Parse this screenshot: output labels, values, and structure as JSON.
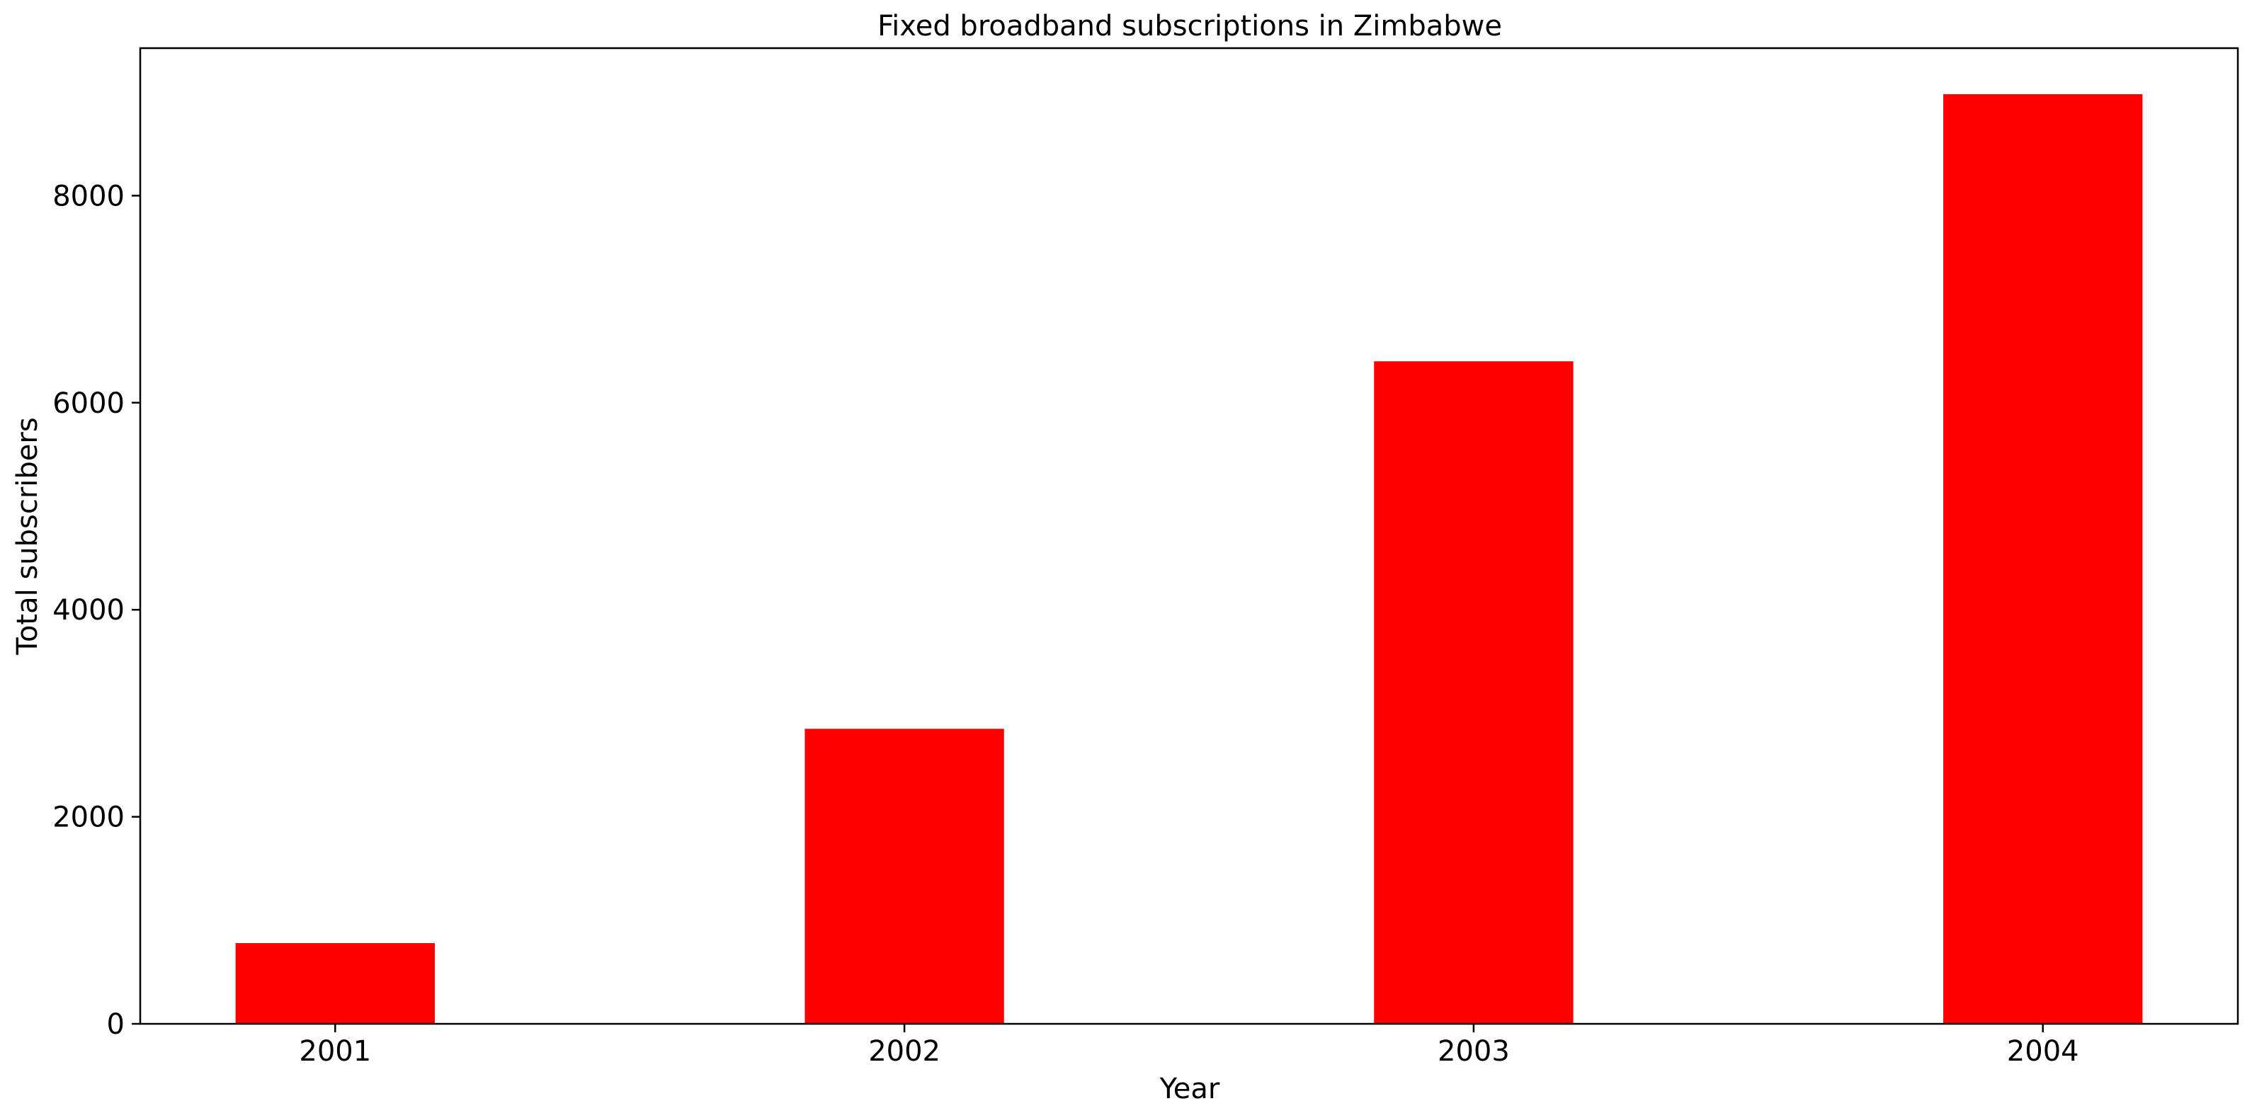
{
  "chart_data": {
    "type": "bar",
    "title": "Fixed broadband subscriptions in Zimbabwe",
    "xlabel": "Year",
    "ylabel": "Total subscribers",
    "categories": [
      "2001",
      "2002",
      "2003",
      "2004"
    ],
    "values": [
      780,
      2850,
      6400,
      8980
    ],
    "ylim": [
      0,
      9425
    ],
    "yticks": [
      0,
      2000,
      4000,
      6000,
      8000
    ],
    "grid": false,
    "legend": false,
    "colors": {
      "bar": "#ff0000",
      "axis": "#000000",
      "background": "#ffffff"
    }
  }
}
